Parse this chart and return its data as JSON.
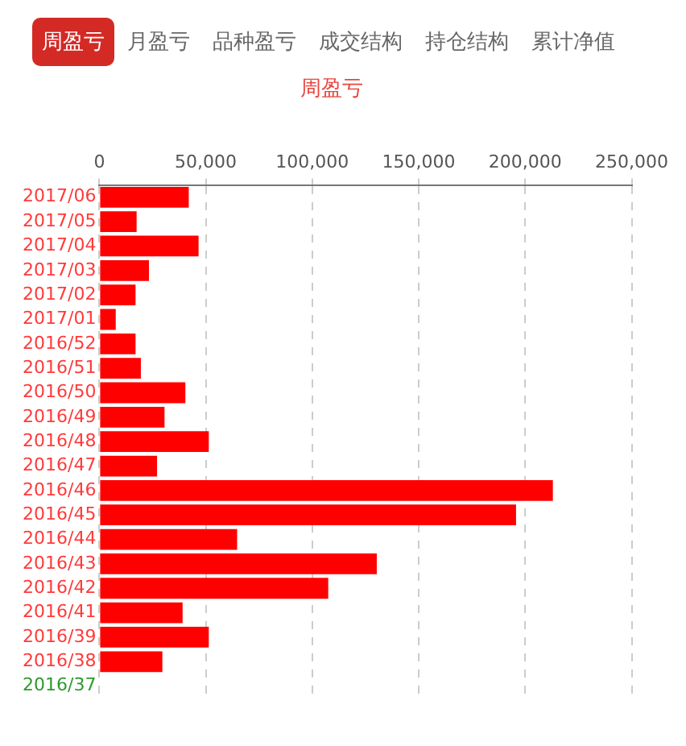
{
  "chart_data": {
    "type": "bar",
    "orientation": "horizontal",
    "title": "周盈亏",
    "annotations": [
      "周盈亏",
      "月盈亏",
      "品种盈亏",
      "成交结构",
      "持仓结构",
      "累计净值"
    ],
    "categories": [
      "2017/06",
      "2017/05",
      "2017/04",
      "2017/03",
      "2017/02",
      "2017/01",
      "2016/52",
      "2016/51",
      "2016/50",
      "2016/49",
      "2016/48",
      "2016/47",
      "2016/46",
      "2016/45",
      "2016/44",
      "2016/43",
      "2016/42",
      "2016/41",
      "2016/39",
      "2016/38",
      "2016/37"
    ],
    "values": [
      42000,
      17500,
      46600,
      23300,
      17000,
      7700,
      17000,
      19500,
      40400,
      30600,
      51400,
      27100,
      213000,
      195700,
      64700,
      130300,
      107500,
      39100,
      51400,
      29600,
      0
    ],
    "colors": [
      "#ff0000",
      "#ff0000",
      "#ff0000",
      "#ff0000",
      "#ff0000",
      "#ff0000",
      "#ff0000",
      "#ff0000",
      "#ff0000",
      "#ff0000",
      "#ff0000",
      "#ff0000",
      "#ff0000",
      "#ff0000",
      "#ff0000",
      "#ff0000",
      "#ff0000",
      "#ff0000",
      "#ff0000",
      "#ff0000",
      "#2e9a2e"
    ],
    "xlim": [
      0,
      250000
    ],
    "xticks": [
      0,
      {
        "value": 50000,
        "label": "50,000"
      },
      {
        "value": 100000,
        "label": "100,000"
      },
      {
        "value": 150000,
        "label": "150,000"
      },
      {
        "value": 200000,
        "label": "200,000"
      },
      {
        "value": 250000,
        "label": "250,000"
      }
    ],
    "grid": "x",
    "legend": false
  }
}
